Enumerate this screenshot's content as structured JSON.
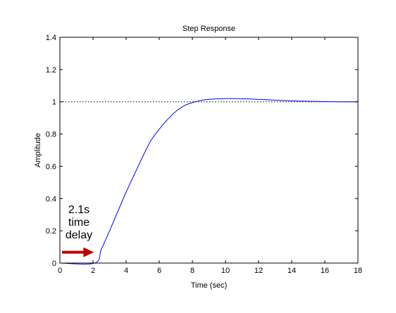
{
  "chart_data": {
    "type": "line",
    "title": "Step Response",
    "xlabel": "Time (sec)",
    "ylabel": "Amplitude",
    "xlim": [
      0,
      18
    ],
    "ylim": [
      0,
      1.4
    ],
    "xticks": [
      0,
      2,
      4,
      6,
      8,
      10,
      12,
      14,
      16,
      18
    ],
    "yticks": [
      0,
      0.2,
      0.4,
      0.6,
      0.8,
      1,
      1.2,
      1.4
    ],
    "xtick_labels": [
      "0",
      "2",
      "4",
      "6",
      "8",
      "10",
      "12",
      "14",
      "16",
      "18"
    ],
    "ytick_labels": [
      "0",
      "0.2",
      "0.4",
      "0.6",
      "0.8",
      "1",
      "1.2",
      "1.4"
    ],
    "grid": false,
    "reference_line": {
      "y": 1,
      "style": "dotted",
      "color": "#000000"
    },
    "series": [
      {
        "color": "#0000ff",
        "x": [
          0,
          2.1,
          2.5,
          3,
          3.5,
          4,
          4.5,
          5,
          5.5,
          6,
          6.5,
          7,
          7.5,
          8,
          8.5,
          9,
          9.5,
          10,
          11,
          12,
          13,
          14,
          15,
          16,
          17,
          18
        ],
        "y": [
          0,
          0,
          0.085,
          0.2,
          0.32,
          0.44,
          0.55,
          0.66,
          0.76,
          0.83,
          0.89,
          0.94,
          0.975,
          0.995,
          1.008,
          1.015,
          1.018,
          1.02,
          1.019,
          1.015,
          1.01,
          1.006,
          1.003,
          1.001,
          1.0,
          1.0
        ]
      }
    ],
    "annotation": {
      "lines": [
        "2.1s",
        "time",
        "delay"
      ],
      "arrow_color": "#c00000",
      "points_to": {
        "x": 2.1,
        "y": 0.08
      }
    }
  }
}
